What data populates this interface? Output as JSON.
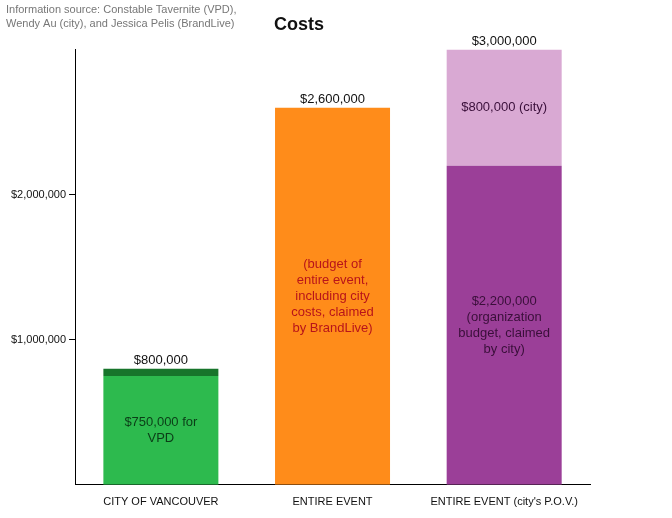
{
  "chart_data": {
    "type": "bar",
    "title": "Costs",
    "source": [
      "Information source: Constable Tavernite (VPD),",
      "Wendy Au (city), and Jessica Pelis (BrandLive)"
    ],
    "categories": [
      "CITY OF VANCOUVER",
      "ENTIRE EVENT",
      "ENTIRE EVENT (city's P.O.V.)"
    ],
    "stacked": true,
    "grid": false,
    "data_labels": true,
    "series": [
      {
        "color": "#2dba4e",
        "values": [
          750000,
          null,
          null
        ],
        "value_labels": [
          "$750,000 for VPD",
          null,
          null
        ]
      },
      {
        "color": "#17752b",
        "values": [
          50000,
          null,
          null
        ]
      },
      {
        "color": "#ff8c1a",
        "values": [
          null,
          2600000,
          null
        ],
        "annotation": "(budget of entire event, including city costs, claimed by BrandLive)"
      },
      {
        "color": "#9b3f98",
        "values": [
          null,
          null,
          2200000
        ],
        "value_labels": [
          null,
          null,
          "$2,200,000 (organization budget, claimed by city)"
        ]
      },
      {
        "color": "#d9a9d3",
        "values": [
          null,
          null,
          800000
        ],
        "value_labels": [
          null,
          null,
          "$800,000 (city)"
        ]
      }
    ],
    "totals": [
      800000,
      2600000,
      3000000
    ],
    "total_labels": [
      "$800,000",
      "$2,600,000",
      "$3,000,000"
    ],
    "ylim": [
      0,
      3000000
    ],
    "yticks": [
      {
        "value": 1000000,
        "label": "$1,000,000"
      },
      {
        "value": 2000000,
        "label": "$2,000,000"
      }
    ]
  }
}
